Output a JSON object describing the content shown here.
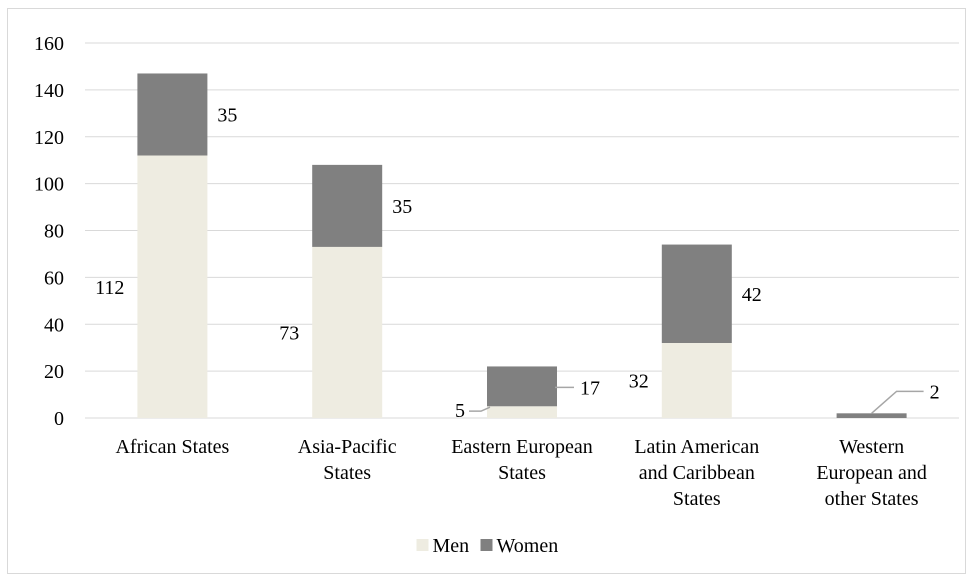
{
  "chart_data": {
    "type": "bar",
    "stacked": true,
    "categories": [
      [
        "African States"
      ],
      [
        "Asia-Pacific",
        "States"
      ],
      [
        "Eastern European",
        "States"
      ],
      [
        "Latin American",
        "and Caribbean",
        "States"
      ],
      [
        "Western",
        "European and",
        "other States"
      ]
    ],
    "series": [
      {
        "name": "Men",
        "values": [
          112,
          73,
          5,
          32,
          0
        ],
        "labels": [
          "112",
          "73",
          "5",
          "32",
          ""
        ],
        "color": "#eeece1"
      },
      {
        "name": "Women",
        "values": [
          35,
          35,
          17,
          42,
          2
        ],
        "labels": [
          "35",
          "35",
          "17",
          "42",
          "2"
        ],
        "color": "#808080"
      }
    ],
    "yticks": [
      "0",
      "20",
      "40",
      "60",
      "80",
      "100",
      "120",
      "140",
      "160"
    ],
    "ylim": [
      0,
      160
    ],
    "grid": true,
    "legend": "bottom",
    "title": "",
    "xlabel": "",
    "ylabel": ""
  },
  "colors": {
    "gridline": "#d9d9d9",
    "leader": "#a6a6a6"
  }
}
